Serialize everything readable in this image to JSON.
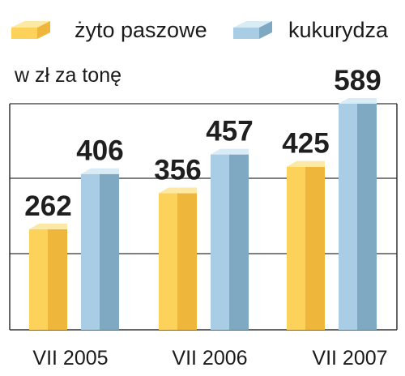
{
  "chart_data": {
    "type": "bar",
    "unit_label": "w zł za tonę",
    "categories": [
      "VII 2005",
      "VII 2006",
      "VII 2007"
    ],
    "series": [
      {
        "name": "żyto paszowe",
        "values": [
          262,
          356,
          425
        ],
        "color": "#fcd25a"
      },
      {
        "name": "kukurydza",
        "values": [
          406,
          457,
          589
        ],
        "color": "#a8cde4"
      }
    ],
    "highlight": {
      "series": 1,
      "index": 2,
      "color": "#d21f49"
    },
    "ylim": [
      0,
      700
    ],
    "grid": true,
    "legend": "top"
  }
}
